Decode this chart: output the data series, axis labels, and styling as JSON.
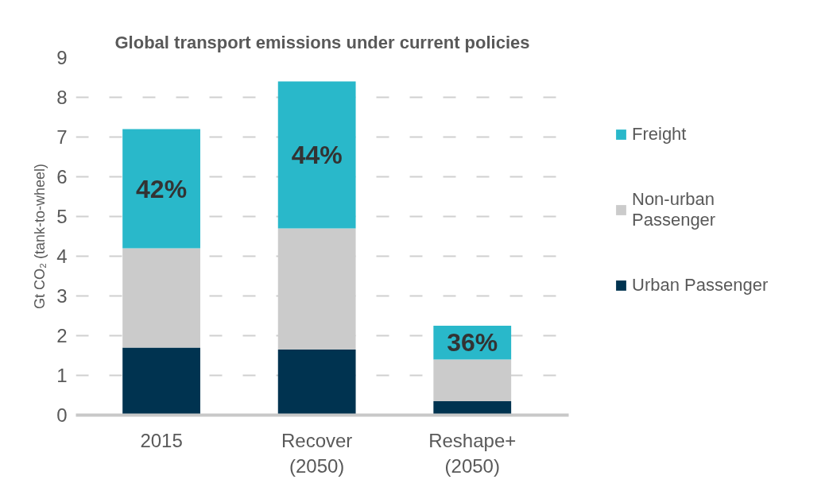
{
  "chart_data": {
    "type": "bar",
    "title": "Global transport emissions under current policies",
    "ylabel": "Gt CO₂ (tank-to-wheel)",
    "categories": [
      "2015",
      "Recover (2050)",
      "Reshape+ (2050)"
    ],
    "stacked": true,
    "series": [
      {
        "name": "Urban Passenger",
        "color": "#003350",
        "values": [
          1.7,
          1.65,
          0.35
        ]
      },
      {
        "name": "Non-urban Passenger",
        "color": "#cbcbcb",
        "values": [
          2.5,
          3.05,
          1.05
        ]
      },
      {
        "name": "Freight",
        "color": "#29b8ca",
        "values": [
          3.0,
          3.7,
          0.85
        ]
      }
    ],
    "annotations": [
      {
        "text": "42%",
        "x": "2015",
        "y": 7.2
      },
      {
        "text": "44%",
        "x": "Recover (2050)",
        "y": 8.4
      },
      {
        "text": "36%",
        "x": "Reshape+ (2050)",
        "y": 2.25
      }
    ],
    "ylim": [
      0,
      9
    ],
    "yticks": [
      0,
      1,
      2,
      3,
      4,
      5,
      6,
      7,
      8,
      9
    ],
    "grid": "y",
    "legend": "right"
  }
}
